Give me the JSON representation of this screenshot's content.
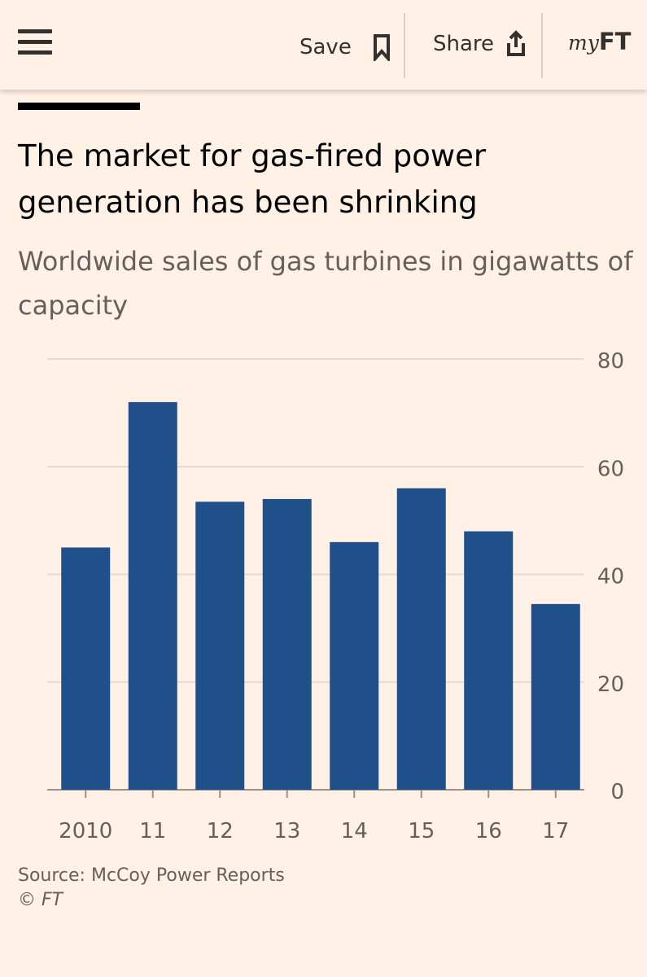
{
  "header": {
    "menu_icon": "hamburger-menu-icon",
    "save_label": "Save",
    "save_icon": "bookmark-icon",
    "share_label": "Share",
    "share_icon": "share-upload-icon",
    "myft_prefix": "my",
    "myft_suffix": "FT"
  },
  "footer": {
    "source": "Source: McCoy Power Reports",
    "copyright": "© FT"
  },
  "colors": {
    "background": "#fff1e5",
    "bar": "#1f5089",
    "gridline": "#e6d9ce",
    "text_muted": "#66605c"
  },
  "chart_data": {
    "type": "bar",
    "title": "The market for gas-fired power generation has been shrinking",
    "subtitle": "Worldwide sales of gas turbines in gigawatts of capacity",
    "xlabel": "",
    "ylabel": "",
    "categories": [
      "2010",
      "11",
      "12",
      "13",
      "14",
      "15",
      "16",
      "17"
    ],
    "values": [
      45,
      72,
      53.5,
      54,
      46,
      56,
      48,
      34.5
    ],
    "ylim": [
      0,
      80
    ],
    "yticks": [
      0,
      20,
      40,
      60,
      80
    ],
    "y_axis_side": "right",
    "grid": true,
    "legend": "none"
  }
}
